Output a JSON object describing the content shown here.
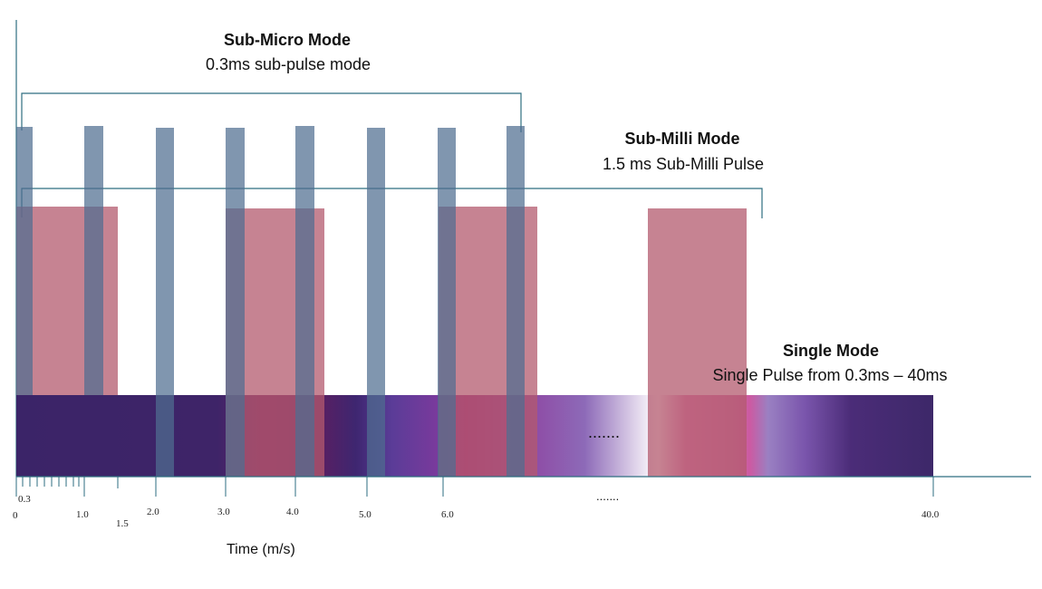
{
  "diagram": {
    "sub_micro": {
      "title": "Sub-Micro Mode",
      "subtitle": "0.3ms sub-pulse mode"
    },
    "sub_milli": {
      "title": "Sub-Milli Mode",
      "subtitle": "1.5 ms Sub-Milli Pulse"
    },
    "single": {
      "title": "Single Mode",
      "subtitle": "Single Pulse from 0.3ms – 40ms"
    },
    "ellipsis_band": ".......",
    "ellipsis_axis": ".......",
    "axis": {
      "label": "Time (m/s)",
      "ticks": [
        "0",
        "0.3",
        "1.0",
        "1.5",
        "2.0",
        "3.0",
        "4.0",
        "5.0",
        "6.0",
        "40.0"
      ]
    },
    "colors": {
      "blue_pulse": "#5a7797",
      "pink_pulse": "#b35a6e",
      "band_dark": "#3b2468",
      "axis_line": "#2e6e80",
      "bracket": "#2e6e80"
    }
  }
}
